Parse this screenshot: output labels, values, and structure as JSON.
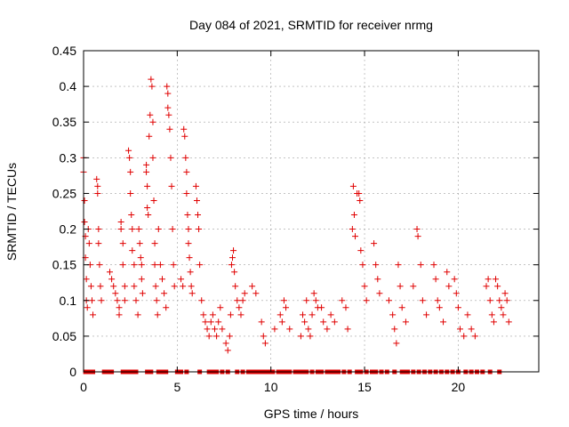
{
  "chart_data": {
    "type": "scatter",
    "title": "Day 084 of 2021, SRMTID for receiver nrmg",
    "xlabel": "GPS time / hours",
    "ylabel": "SRMTID / TECUs",
    "xlim": [
      0,
      24.3
    ],
    "ylim": [
      0,
      0.45
    ],
    "x_ticks": [
      0,
      5,
      10,
      15,
      20
    ],
    "x_tick_labels": [
      "0",
      "5",
      "10",
      "15",
      "20"
    ],
    "y_ticks": [
      0,
      0.05,
      0.1,
      0.15,
      0.2,
      0.25,
      0.3,
      0.35,
      0.4,
      0.45
    ],
    "y_tick_labels": [
      "0",
      "0.05",
      "0.1",
      "0.15",
      "0.2",
      "0.25",
      "0.3",
      "0.35",
      "0.4",
      "0.45"
    ],
    "grid": true,
    "series": [
      {
        "name": "SRMTID",
        "color": "#e00000",
        "marker": "plus",
        "points": [
          [
            0.0,
            0.28
          ],
          [
            0.0,
            0.3
          ],
          [
            0.05,
            0.24
          ],
          [
            0.05,
            0.21
          ],
          [
            0.1,
            0.19
          ],
          [
            0.1,
            0.16
          ],
          [
            0.15,
            0.13
          ],
          [
            0.15,
            0.1
          ],
          [
            0.2,
            0.09
          ],
          [
            0.25,
            0.2
          ],
          [
            0.3,
            0.18
          ],
          [
            0.35,
            0.15
          ],
          [
            0.4,
            0.12
          ],
          [
            0.45,
            0.1
          ],
          [
            0.5,
            0.08
          ],
          [
            0.7,
            0.27
          ],
          [
            0.75,
            0.26
          ],
          [
            0.75,
            0.25
          ],
          [
            0.8,
            0.2
          ],
          [
            0.8,
            0.18
          ],
          [
            0.85,
            0.15
          ],
          [
            0.9,
            0.12
          ],
          [
            0.95,
            0.1
          ],
          [
            1.4,
            0.14
          ],
          [
            1.5,
            0.13
          ],
          [
            1.6,
            0.12
          ],
          [
            1.7,
            0.11
          ],
          [
            1.8,
            0.1
          ],
          [
            1.9,
            0.09
          ],
          [
            1.9,
            0.08
          ],
          [
            2.0,
            0.21
          ],
          [
            2.0,
            0.2
          ],
          [
            2.1,
            0.18
          ],
          [
            2.1,
            0.15
          ],
          [
            2.2,
            0.12
          ],
          [
            2.2,
            0.1
          ],
          [
            2.4,
            0.31
          ],
          [
            2.45,
            0.3
          ],
          [
            2.5,
            0.28
          ],
          [
            2.5,
            0.25
          ],
          [
            2.55,
            0.22
          ],
          [
            2.6,
            0.2
          ],
          [
            2.6,
            0.17
          ],
          [
            2.7,
            0.15
          ],
          [
            2.7,
            0.12
          ],
          [
            2.8,
            0.1
          ],
          [
            2.9,
            0.08
          ],
          [
            2.95,
            0.2
          ],
          [
            3.0,
            0.18
          ],
          [
            3.05,
            0.16
          ],
          [
            3.1,
            0.15
          ],
          [
            3.1,
            0.13
          ],
          [
            3.15,
            0.11
          ],
          [
            3.35,
            0.29
          ],
          [
            3.35,
            0.28
          ],
          [
            3.4,
            0.26
          ],
          [
            3.4,
            0.23
          ],
          [
            3.45,
            0.22
          ],
          [
            3.5,
            0.33
          ],
          [
            3.55,
            0.36
          ],
          [
            3.6,
            0.41
          ],
          [
            3.65,
            0.4
          ],
          [
            3.7,
            0.35
          ],
          [
            3.7,
            0.3
          ],
          [
            3.75,
            0.24
          ],
          [
            3.8,
            0.18
          ],
          [
            3.8,
            0.15
          ],
          [
            3.85,
            0.12
          ],
          [
            3.9,
            0.1
          ],
          [
            3.95,
            0.08
          ],
          [
            4.0,
            0.2
          ],
          [
            4.1,
            0.15
          ],
          [
            4.2,
            0.13
          ],
          [
            4.3,
            0.11
          ],
          [
            4.4,
            0.09
          ],
          [
            4.45,
            0.4
          ],
          [
            4.5,
            0.39
          ],
          [
            4.5,
            0.37
          ],
          [
            4.55,
            0.36
          ],
          [
            4.6,
            0.34
          ],
          [
            4.65,
            0.3
          ],
          [
            4.7,
            0.26
          ],
          [
            4.75,
            0.2
          ],
          [
            4.8,
            0.15
          ],
          [
            4.85,
            0.12
          ],
          [
            5.2,
            0.13
          ],
          [
            5.3,
            0.12
          ],
          [
            5.35,
            0.34
          ],
          [
            5.4,
            0.33
          ],
          [
            5.45,
            0.3
          ],
          [
            5.5,
            0.28
          ],
          [
            5.5,
            0.25
          ],
          [
            5.55,
            0.22
          ],
          [
            5.6,
            0.2
          ],
          [
            5.6,
            0.18
          ],
          [
            5.65,
            0.16
          ],
          [
            5.7,
            0.14
          ],
          [
            5.75,
            0.12
          ],
          [
            5.8,
            0.11
          ],
          [
            6.0,
            0.26
          ],
          [
            6.05,
            0.24
          ],
          [
            6.1,
            0.22
          ],
          [
            6.15,
            0.2
          ],
          [
            6.2,
            0.15
          ],
          [
            6.3,
            0.1
          ],
          [
            6.4,
            0.08
          ],
          [
            6.5,
            0.07
          ],
          [
            6.6,
            0.06
          ],
          [
            6.7,
            0.05
          ],
          [
            6.8,
            0.07
          ],
          [
            6.9,
            0.08
          ],
          [
            7.0,
            0.06
          ],
          [
            7.1,
            0.05
          ],
          [
            7.2,
            0.07
          ],
          [
            7.3,
            0.09
          ],
          [
            7.4,
            0.06
          ],
          [
            7.6,
            0.04
          ],
          [
            7.7,
            0.03
          ],
          [
            7.8,
            0.05
          ],
          [
            7.85,
            0.08
          ],
          [
            7.9,
            0.15
          ],
          [
            7.95,
            0.16
          ],
          [
            8.0,
            0.17
          ],
          [
            8.05,
            0.14
          ],
          [
            8.1,
            0.12
          ],
          [
            8.2,
            0.1
          ],
          [
            8.3,
            0.09
          ],
          [
            8.4,
            0.08
          ],
          [
            8.5,
            0.1
          ],
          [
            8.6,
            0.11
          ],
          [
            9.0,
            0.12
          ],
          [
            9.2,
            0.11
          ],
          [
            9.5,
            0.07
          ],
          [
            9.6,
            0.05
          ],
          [
            9.7,
            0.04
          ],
          [
            10.2,
            0.06
          ],
          [
            10.5,
            0.08
          ],
          [
            10.6,
            0.07
          ],
          [
            10.7,
            0.1
          ],
          [
            10.8,
            0.09
          ],
          [
            11.0,
            0.06
          ],
          [
            11.6,
            0.05
          ],
          [
            11.7,
            0.08
          ],
          [
            11.8,
            0.07
          ],
          [
            11.9,
            0.1
          ],
          [
            12.0,
            0.06
          ],
          [
            12.1,
            0.05
          ],
          [
            12.2,
            0.08
          ],
          [
            12.3,
            0.11
          ],
          [
            12.4,
            0.1
          ],
          [
            12.5,
            0.09
          ],
          [
            12.7,
            0.09
          ],
          [
            12.8,
            0.07
          ],
          [
            13.0,
            0.06
          ],
          [
            13.2,
            0.08
          ],
          [
            13.4,
            0.07
          ],
          [
            13.8,
            0.1
          ],
          [
            14.0,
            0.09
          ],
          [
            14.1,
            0.06
          ],
          [
            14.35,
            0.2
          ],
          [
            14.4,
            0.26
          ],
          [
            14.45,
            0.22
          ],
          [
            14.5,
            0.19
          ],
          [
            14.6,
            0.25
          ],
          [
            14.7,
            0.25
          ],
          [
            14.75,
            0.24
          ],
          [
            14.8,
            0.17
          ],
          [
            14.9,
            0.15
          ],
          [
            15.0,
            0.12
          ],
          [
            15.1,
            0.1
          ],
          [
            15.5,
            0.18
          ],
          [
            15.6,
            0.15
          ],
          [
            15.7,
            0.13
          ],
          [
            15.8,
            0.11
          ],
          [
            16.3,
            0.1
          ],
          [
            16.5,
            0.08
          ],
          [
            16.6,
            0.06
          ],
          [
            16.7,
            0.04
          ],
          [
            16.8,
            0.15
          ],
          [
            16.9,
            0.12
          ],
          [
            17.0,
            0.09
          ],
          [
            17.2,
            0.07
          ],
          [
            17.6,
            0.12
          ],
          [
            17.8,
            0.2
          ],
          [
            17.85,
            0.19
          ],
          [
            18.0,
            0.15
          ],
          [
            18.1,
            0.1
          ],
          [
            18.3,
            0.08
          ],
          [
            18.7,
            0.15
          ],
          [
            18.8,
            0.13
          ],
          [
            18.9,
            0.1
          ],
          [
            19.0,
            0.09
          ],
          [
            19.2,
            0.07
          ],
          [
            19.4,
            0.14
          ],
          [
            19.5,
            0.12
          ],
          [
            19.8,
            0.13
          ],
          [
            19.9,
            0.11
          ],
          [
            20.0,
            0.09
          ],
          [
            20.1,
            0.06
          ],
          [
            20.3,
            0.05
          ],
          [
            20.5,
            0.08
          ],
          [
            20.7,
            0.06
          ],
          [
            20.9,
            0.05
          ],
          [
            21.5,
            0.12
          ],
          [
            21.6,
            0.13
          ],
          [
            21.7,
            0.1
          ],
          [
            21.8,
            0.08
          ],
          [
            21.9,
            0.07
          ],
          [
            22.0,
            0.13
          ],
          [
            22.1,
            0.12
          ],
          [
            22.2,
            0.1
          ],
          [
            22.3,
            0.09
          ],
          [
            22.4,
            0.08
          ],
          [
            22.5,
            0.11
          ],
          [
            22.6,
            0.1
          ],
          [
            22.7,
            0.07
          ]
        ],
        "zero_markers_x": [
          0.1,
          0.2,
          0.4,
          0.5,
          1.1,
          1.2,
          1.3,
          1.4,
          1.5,
          2.1,
          2.3,
          2.5,
          2.7,
          2.8,
          3.4,
          3.6,
          4.0,
          4.2,
          4.4,
          5.0,
          5.2,
          5.5,
          6.2,
          6.7,
          6.9,
          7.1,
          7.4,
          7.7,
          8.2,
          8.5,
          8.8,
          9.0,
          9.1,
          9.2,
          9.3,
          9.5,
          9.7,
          9.9,
          10.1,
          10.4,
          10.6,
          10.8,
          11.0,
          11.3,
          11.5,
          11.7,
          11.9,
          12.2,
          12.5,
          12.7,
          13.0,
          13.2,
          13.4,
          13.6,
          13.9,
          14.2,
          14.6,
          14.8,
          15.1,
          15.4,
          15.6,
          15.9,
          16.2,
          16.6,
          17.0,
          17.1,
          17.3,
          17.6,
          17.9,
          18.2,
          18.5,
          18.8,
          19.1,
          19.4,
          19.7,
          20.0,
          20.4,
          20.7,
          21.0,
          21.3,
          21.7,
          22.2
        ]
      }
    ]
  }
}
